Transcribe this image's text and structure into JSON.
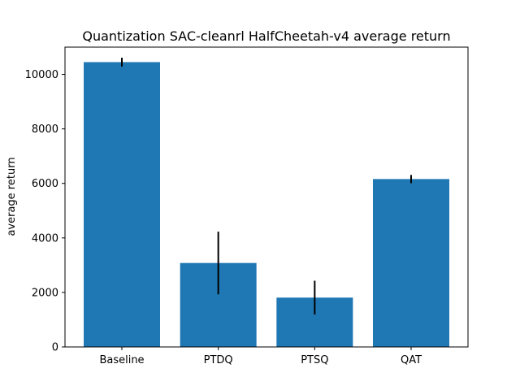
{
  "chart_data": {
    "type": "bar",
    "title": "Quantization SAC-cleanrl HalfCheetah-v4 average return",
    "xlabel": "",
    "ylabel": "average return",
    "categories": [
      "Baseline",
      "PTDQ",
      "PTSQ",
      "QAT"
    ],
    "values": [
      10450,
      3080,
      1810,
      6160
    ],
    "errors": [
      160,
      1150,
      620,
      150
    ],
    "ylim": [
      0,
      11000
    ],
    "yticks": [
      0,
      2000,
      4000,
      6000,
      8000,
      10000
    ],
    "ytick_labels": [
      "0",
      "2000",
      "4000",
      "6000",
      "8000",
      "10000"
    ],
    "grid": false,
    "legend": "none",
    "colors": {
      "bar": "#1f77b4",
      "errorbar": "#000000",
      "axis": "#000000"
    }
  }
}
